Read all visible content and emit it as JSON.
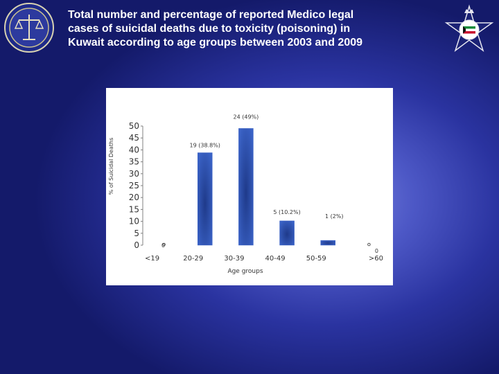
{
  "title": "Total number and percentage of reported Medico legal cases of suicidal deaths due to toxicity (poisoning) in Kuwait according to age groups between 2003 and 2009",
  "colors": {
    "background": "#2a33a0",
    "bar": "#3a62c6",
    "panel": "#ffffff"
  },
  "icons": {
    "left_logo": "justice-scales-emblem-icon",
    "right_logo": "police-star-emblem-icon"
  },
  "chart_data": {
    "type": "bar",
    "title": "",
    "xlabel": "Age groups",
    "ylabel": "% of Suicidal Deaths",
    "ylim": [
      0,
      50
    ],
    "yticks": [
      "50",
      "45",
      "40",
      "35",
      "30",
      "25",
      "20",
      "15",
      "10",
      "5",
      "0"
    ],
    "categories": [
      "<19",
      "20-29",
      "30-39",
      "40-49",
      "50-59",
      ">60"
    ],
    "values": [
      0,
      38.8,
      49,
      10.2,
      2,
      0
    ],
    "data_labels": [
      "0",
      "19 (38.8%)",
      "24 (49%)",
      "5 (10.2%)",
      "1 (2%)",
      "0"
    ],
    "grid": false,
    "legend": "none"
  }
}
